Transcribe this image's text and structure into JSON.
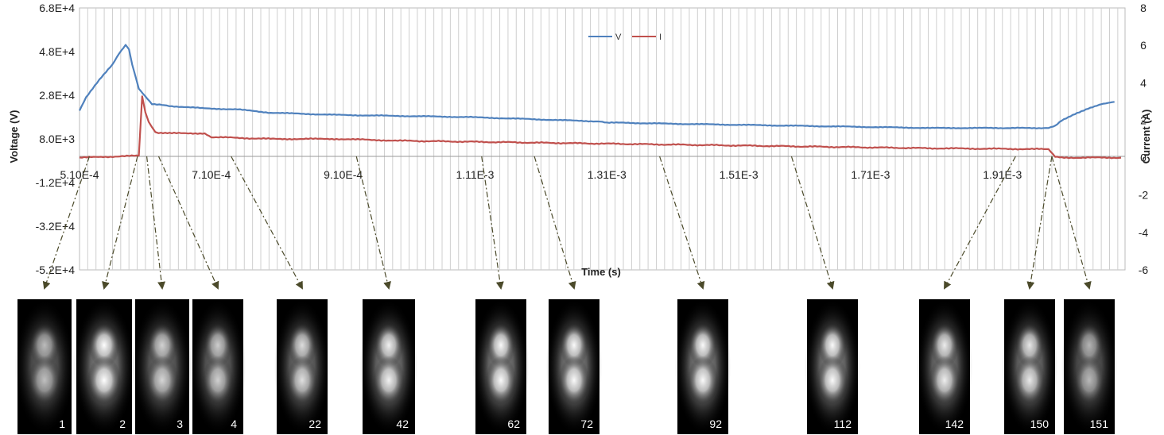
{
  "chart_data": {
    "type": "line",
    "title": "",
    "xlabel": "Time (s)",
    "ylabel": "Voltage (V)",
    "y2label": "Current (A)",
    "xlim": [
      0.00051,
      0.00209
    ],
    "ylim": [
      -52000,
      68000
    ],
    "y2lim": [
      -6,
      8
    ],
    "x_ticks": [
      0.00051,
      0.00071,
      0.00091,
      0.00111,
      0.00131,
      0.00151,
      0.00171,
      0.00191
    ],
    "x_tick_labels": [
      "5.10E-4",
      "7.10E-4",
      "9.10E-4",
      "1.11E-3",
      "1.31E-3",
      "1.51E-3",
      "1.71E-3",
      "1.91E-3"
    ],
    "y_ticks": [
      68000,
      48000,
      28000,
      8000,
      -12000,
      -32000,
      -52000
    ],
    "y_tick_labels": [
      "6.8E+4",
      "4.8E+4",
      "2.8E+4",
      "8.0E+3",
      "-1.2E+4",
      "-3.2E+4",
      "-5.2E+4"
    ],
    "y2_ticks": [
      8,
      6,
      4,
      2,
      0,
      -2,
      -4,
      -6
    ],
    "y2_tick_labels": [
      "8",
      "6",
      "4",
      "2",
      "0",
      "-2",
      "-4",
      "-6"
    ],
    "grid": "vertical",
    "legend_position": "top-center",
    "series": [
      {
        "name": "V",
        "color": "#4f81bd",
        "axis": "left",
        "x": [
          0.00051,
          0.00052,
          0.00054,
          0.00056,
          0.00057,
          0.00058,
          0.000585,
          0.00059,
          0.0006,
          0.00062,
          0.00065,
          0.0007,
          0.00075,
          0.0008,
          0.0009,
          0.001,
          0.0011,
          0.0012,
          0.0013,
          0.00131,
          0.0014,
          0.0015,
          0.0016,
          0.0017,
          0.0018,
          0.0019,
          0.00198,
          0.00199,
          0.002,
          0.00202,
          0.00204,
          0.00206,
          0.00208
        ],
        "y": [
          21000,
          27000,
          35000,
          42000,
          47000,
          51000,
          49000,
          42000,
          31000,
          24000,
          23000,
          22000,
          21500,
          20000,
          19000,
          18500,
          18000,
          17000,
          16000,
          15500,
          15000,
          14500,
          14000,
          13500,
          13000,
          13000,
          13000,
          14000,
          16500,
          19500,
          22000,
          24000,
          25000
        ]
      },
      {
        "name": "I",
        "color": "#c0504d",
        "axis": "right",
        "x": [
          0.00051,
          0.0006,
          0.000605,
          0.00061,
          0.000615,
          0.00062,
          0.000625,
          0.00063,
          0.00064,
          0.00065,
          0.0007,
          0.00071,
          0.0008,
          0.0009,
          0.001,
          0.0012,
          0.0014,
          0.0016,
          0.0018,
          0.00198,
          0.00199,
          0.002,
          0.00209
        ],
        "y": [
          0.0,
          0.1,
          3.3,
          2.4,
          1.9,
          1.6,
          1.4,
          1.3,
          1.3,
          1.3,
          1.3,
          1.1,
          1.0,
          1.0,
          0.9,
          0.8,
          0.7,
          0.6,
          0.5,
          0.45,
          0.05,
          0.0,
          0.0
        ]
      }
    ]
  },
  "frames": [
    {
      "label": "1",
      "time": 0.000525,
      "brightness": 0.35
    },
    {
      "label": "2",
      "time": 0.000598,
      "brightness": 1.0
    },
    {
      "label": "3",
      "time": 0.000612,
      "brightness": 0.55
    },
    {
      "label": "4",
      "time": 0.00063,
      "brightness": 0.5
    },
    {
      "label": "22",
      "time": 0.00074,
      "brightness": 0.65
    },
    {
      "label": "42",
      "time": 0.00093,
      "brightness": 0.85
    },
    {
      "label": "62",
      "time": 0.00112,
      "brightness": 0.95
    },
    {
      "label": "72",
      "time": 0.0012,
      "brightness": 0.95
    },
    {
      "label": "92",
      "time": 0.00139,
      "brightness": 0.95
    },
    {
      "label": "112",
      "time": 0.00159,
      "brightness": 0.95
    },
    {
      "label": "142",
      "time": 0.00193,
      "brightness": 0.8
    },
    {
      "label": "150",
      "time": 0.001985,
      "brightness": 0.75
    },
    {
      "label": "151",
      "time": 0.001985,
      "brightness": 0.3
    }
  ]
}
